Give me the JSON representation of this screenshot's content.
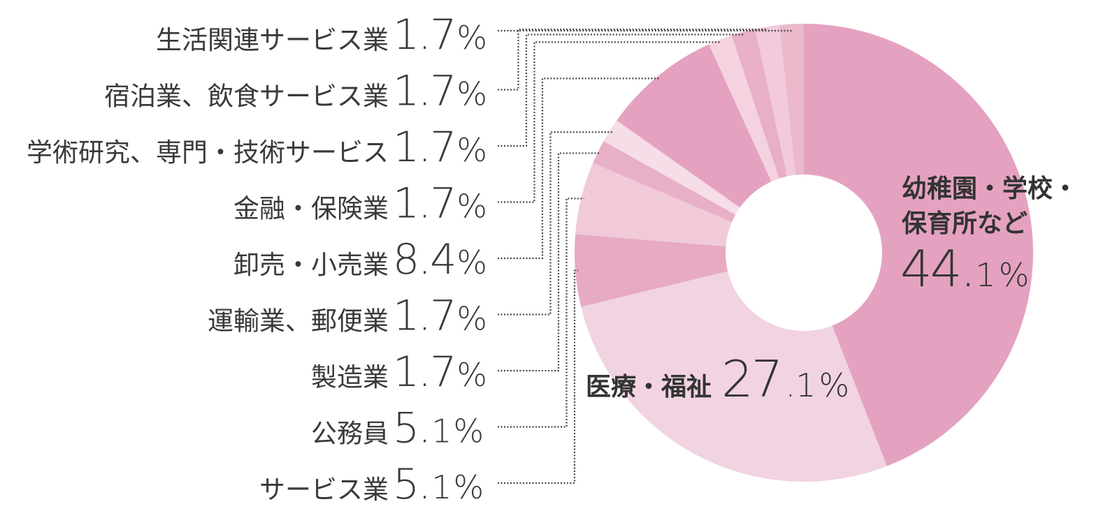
{
  "chart_data": {
    "type": "pie",
    "variant": "donut",
    "start": "12 o'clock, clockwise",
    "slices": [
      {
        "label": "幼稚園・学校・保育所など",
        "value": 44.1,
        "number": "44.",
        "decimal": "1",
        "unit": "%",
        "color": "#e4a2c0"
      },
      {
        "label": "医療・福祉",
        "value": 27.1,
        "number": "27",
        "decimal": ".1",
        "unit": "%",
        "color": "#f1d3e1"
      },
      {
        "label": "サービス業",
        "value": 5.1,
        "number": "5.",
        "decimal": "1",
        "unit": "%",
        "color": "#e6abc3"
      },
      {
        "label": "公務員",
        "value": 5.1,
        "number": "5.",
        "decimal": "1",
        "unit": "%",
        "color": "#f1cad9"
      },
      {
        "label": "製造業",
        "value": 1.7,
        "number": "1.7",
        "decimal": "",
        "unit": "%",
        "color": "#e8b0c6"
      },
      {
        "label": "運輸業、郵便業",
        "value": 1.7,
        "number": "1.7",
        "decimal": "",
        "unit": "%",
        "color": "#f6dde8"
      },
      {
        "label": "卸売・小売業",
        "value": 8.4,
        "number": "8.4",
        "decimal": "",
        "unit": "%",
        "color": "#e4a2c0"
      },
      {
        "label": "金融・保険業",
        "value": 1.7,
        "number": "1.7",
        "decimal": "",
        "unit": "%",
        "color": "#f4d2e0"
      },
      {
        "label": "学術研究、専門・技術サービス",
        "value": 1.7,
        "number": "1.7",
        "decimal": "",
        "unit": "%",
        "color": "#e9afc6"
      },
      {
        "label": "宿泊業、飲食サービス業",
        "value": 1.7,
        "number": "1.7",
        "decimal": "",
        "unit": "%",
        "color": "#f2cadb"
      },
      {
        "label": "生活関連サービス業",
        "value": 1.7,
        "number": "1.7",
        "decimal": "",
        "unit": "%",
        "color": "#ebb8cc"
      }
    ],
    "labels_inside": [
      "幼稚園・学校・保育所など",
      "医療・福祉"
    ],
    "legend_left_order": [
      "生活関連サービス業",
      "宿泊業、飲食サービス業",
      "学術研究、専門・技術サービス",
      "金融・保険業",
      "卸売・小売業",
      "運輸業、郵便業",
      "製造業",
      "公務員",
      "サービス業"
    ]
  },
  "inside_labels": {
    "main_line1": "幼稚園・学校・",
    "main_line2": "保育所など",
    "main_number": "44.",
    "main_decimal": "1",
    "main_unit": "%",
    "second_label": "医療・福祉",
    "second_number": "27",
    "second_decimal": ".1",
    "second_unit": "%"
  }
}
